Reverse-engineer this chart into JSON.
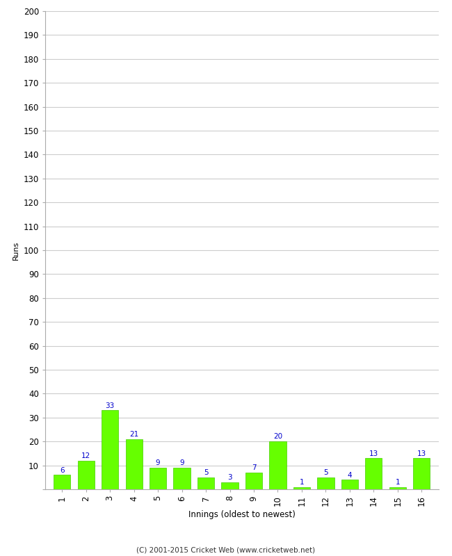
{
  "innings": [
    1,
    2,
    3,
    4,
    5,
    6,
    7,
    8,
    9,
    10,
    11,
    12,
    13,
    14,
    15,
    16
  ],
  "runs": [
    6,
    12,
    33,
    21,
    9,
    9,
    5,
    3,
    7,
    20,
    1,
    5,
    4,
    13,
    1,
    13
  ],
  "bar_color": "#66ff00",
  "bar_edge_color": "#44cc00",
  "label_color": "#0000cc",
  "ylabel": "Runs",
  "xlabel": "Innings (oldest to newest)",
  "ylim": [
    0,
    200
  ],
  "yticks": [
    0,
    10,
    20,
    30,
    40,
    50,
    60,
    70,
    80,
    90,
    100,
    110,
    120,
    130,
    140,
    150,
    160,
    170,
    180,
    190,
    200
  ],
  "grid_color": "#cccccc",
  "background_color": "#ffffff",
  "footer": "(C) 2001-2015 Cricket Web (www.cricketweb.net)",
  "label_fontsize": 7.5,
  "axis_fontsize": 8.5,
  "ylabel_fontsize": 8,
  "footer_fontsize": 7.5
}
